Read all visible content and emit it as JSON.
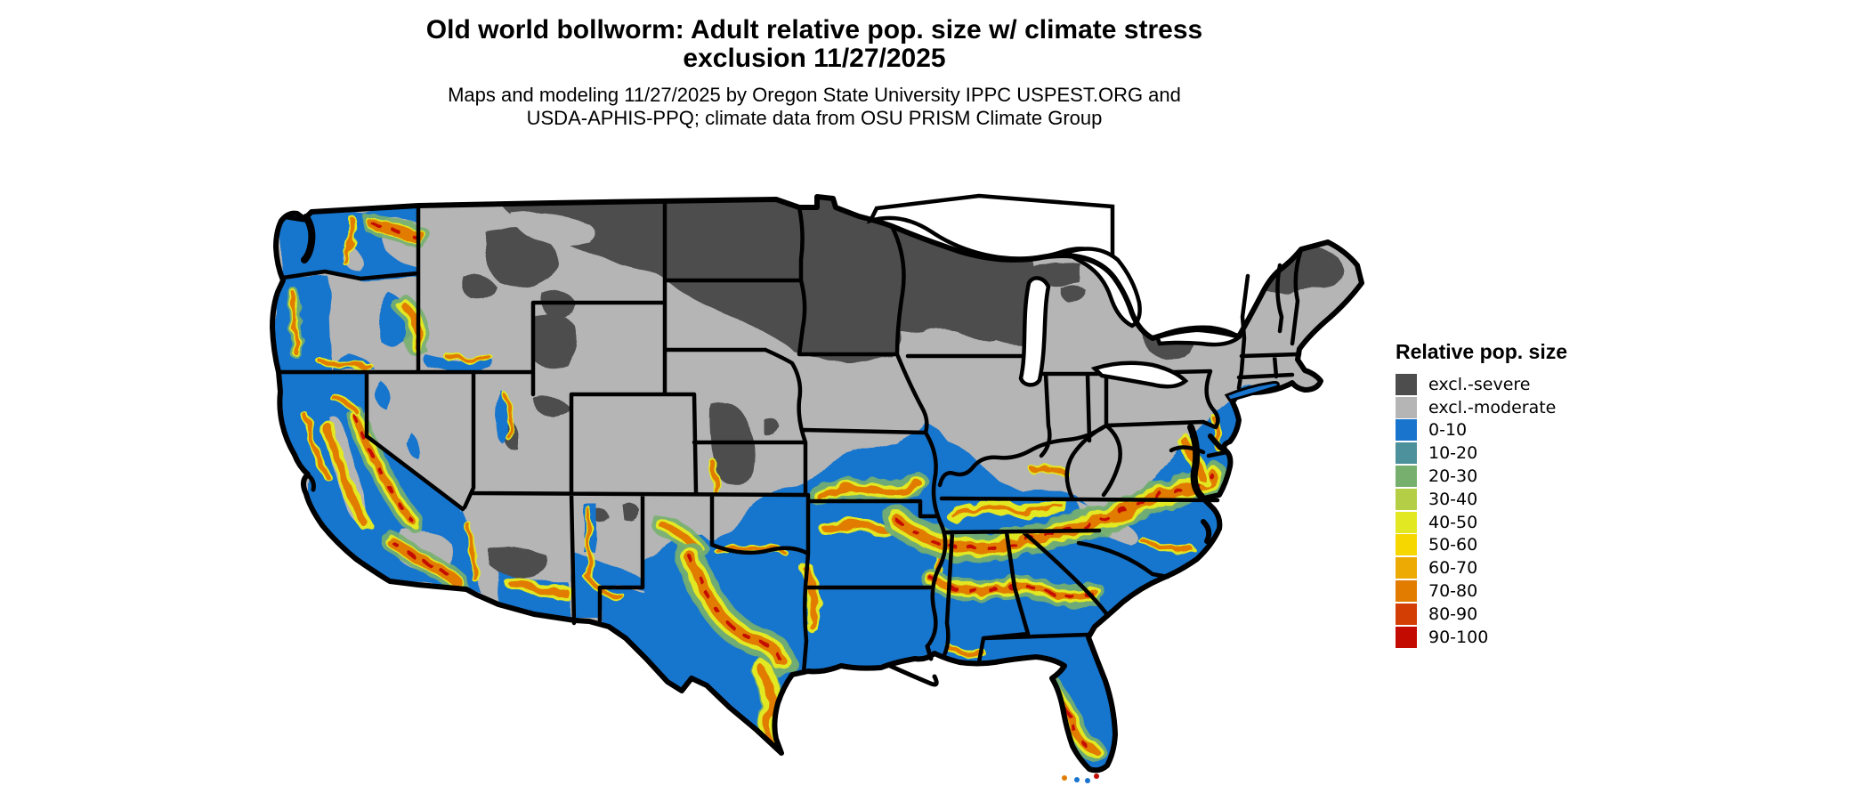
{
  "title": {
    "line1": "Old world bollworm: Adult relative pop. size w/ climate stress",
    "line2": "exclusion 11/27/2025"
  },
  "subtitle": {
    "line1": "Maps and modeling 11/27/2025 by Oregon State University IPPC USPEST.ORG and",
    "line2": "USDA-APHIS-PPQ; climate data from OSU PRISM Climate Group"
  },
  "legend": {
    "title": "Relative pop. size",
    "entries": [
      {
        "label": "excl.-severe",
        "color": "#4d4d4d"
      },
      {
        "label": "excl.-moderate",
        "color": "#b5b5b5"
      },
      {
        "label": "0-10",
        "color": "#1874cd"
      },
      {
        "label": "10-20",
        "color": "#4d919c"
      },
      {
        "label": "20-30",
        "color": "#77b06e"
      },
      {
        "label": "30-40",
        "color": "#b4cf45"
      },
      {
        "label": "40-50",
        "color": "#e2e822"
      },
      {
        "label": "50-60",
        "color": "#f6d800"
      },
      {
        "label": "60-70",
        "color": "#eda904"
      },
      {
        "label": "70-80",
        "color": "#e17c01"
      },
      {
        "label": "80-90",
        "color": "#d23e04"
      },
      {
        "label": "90-100",
        "color": "#c40b01"
      }
    ]
  },
  "map": {
    "area_label": "Contiguous United States",
    "type": "raster choropleth with state boundaries",
    "visual_summary": "Northern tier (ND, MN, WI, upper MI, N Maine, Adirondacks, northern Rockies) shown as climate-stress excluded severe (dark gray); central/mountain states excluded moderate (light gray); southern third and Pacific coast suitable (blue) with mottled orange/yellow/red bands of higher relative population across central Texas, the Gulf states piedmont, central Florida and western valleys"
  }
}
